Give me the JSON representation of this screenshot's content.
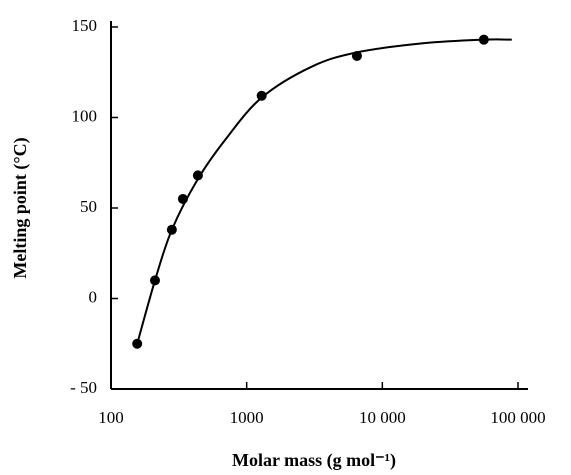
{
  "chart_data": {
    "type": "scatter",
    "xlabel": "Molar mass (g mol⁻¹)",
    "ylabel": "Melting point (°C)",
    "x": [
      156,
      211,
      281,
      339,
      437,
      1290,
      6500,
      56000
    ],
    "values": [
      -25,
      10,
      38,
      55,
      68,
      112,
      134,
      143
    ],
    "color": "#000000",
    "curve": {
      "x": [
        156,
        211,
        281,
        437,
        700,
        1290,
        3000,
        6500,
        20000,
        56000,
        90000
      ],
      "values": [
        -25,
        10,
        38,
        66,
        88,
        111,
        128,
        136,
        141,
        143,
        143
      ]
    },
    "xscale": "log",
    "xlim": [
      100,
      100000
    ],
    "xticks": [
      100,
      1000,
      {
        "value": 10000,
        "label": "10 000"
      },
      {
        "value": 100000,
        "label": "100 000"
      }
    ],
    "ylim": [
      -50,
      150
    ],
    "yticks": [
      {
        "value": -50,
        "label": "- 50"
      },
      0,
      50,
      100,
      150
    ],
    "grid": false
  }
}
